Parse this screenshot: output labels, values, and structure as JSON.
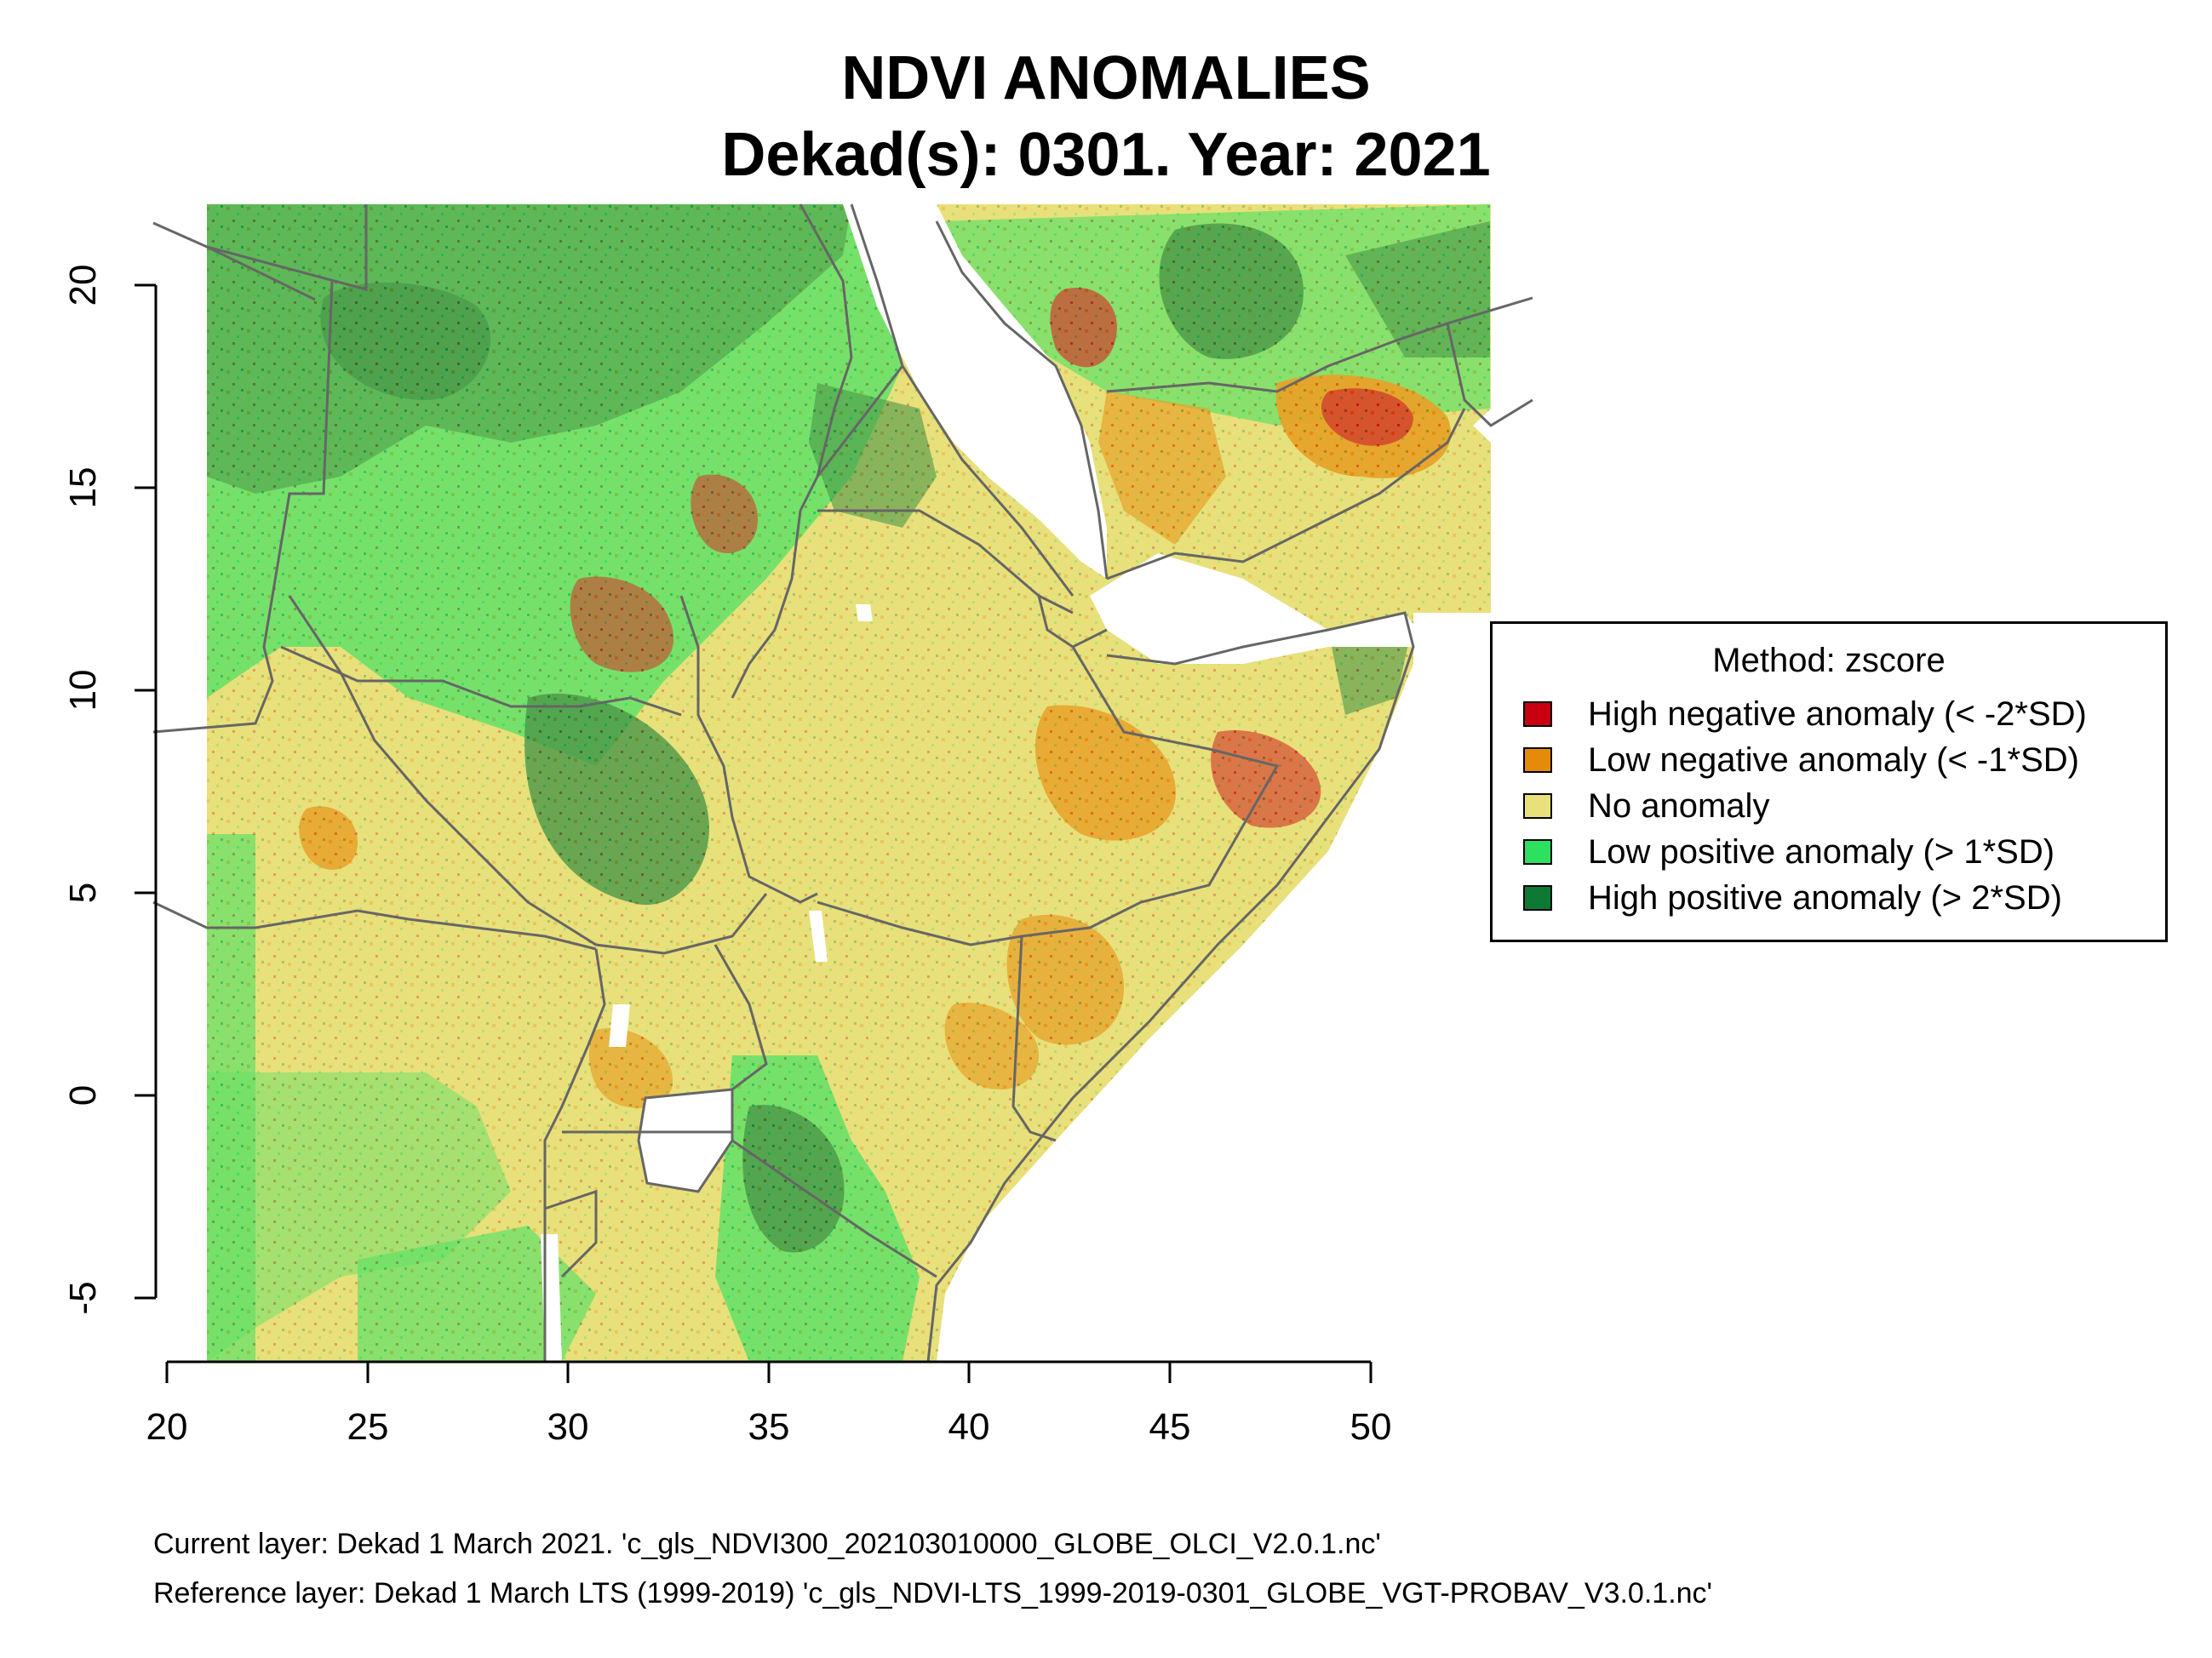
{
  "title": {
    "line1": "NDVI ANOMALIES",
    "line2": "Dekad(s): 0301. Year: 2021"
  },
  "map": {
    "lon_range": [
      20,
      50
    ],
    "lat_range": [
      -5,
      20
    ],
    "x_ticks": [
      "20",
      "25",
      "30",
      "35",
      "40",
      "45",
      "50"
    ],
    "y_ticks": [
      "20",
      "15",
      "10",
      "5",
      "0",
      "-5"
    ]
  },
  "legend": {
    "title": "Method: zscore",
    "items": [
      {
        "label": "High negative anomaly (< -2*SD)",
        "color": "#c8000f"
      },
      {
        "label": "Low negative anomaly (< -1*SD)",
        "color": "#e68a0a"
      },
      {
        "label": "No anomaly",
        "color": "#e8e07a"
      },
      {
        "label": "Low positive anomaly (> 1*SD)",
        "color": "#2ee060"
      },
      {
        "label": "High positive anomaly (> 2*SD)",
        "color": "#0c7a35"
      }
    ]
  },
  "footnotes": {
    "current": "Current layer: Dekad 1 March 2021. 'c_gls_NDVI300_202103010000_GLOBE_OLCI_V2.0.1.nc'",
    "reference": "Reference layer: Dekad 1 March LTS (1999-2019) 'c_gls_NDVI-LTS_1999-2019-0301_GLOBE_VGT-PROBAV_V3.0.1.nc'"
  },
  "colors": {
    "water": "#ffffff",
    "border": "#666666"
  }
}
